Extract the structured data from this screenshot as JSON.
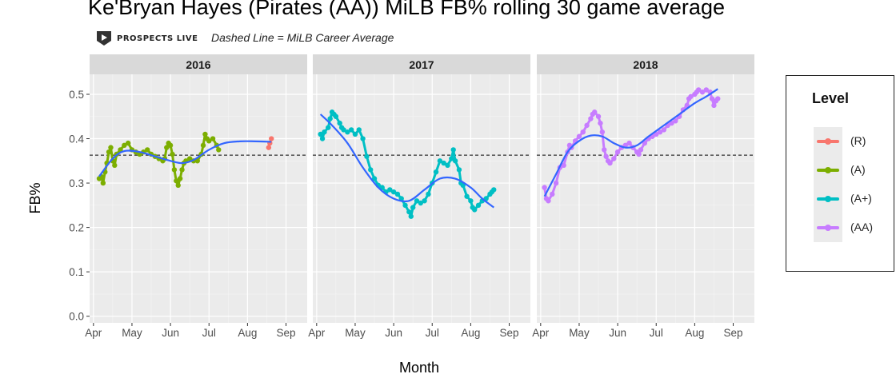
{
  "page": {
    "title": "Ke'Bryan Hayes (Pirates (AA)) MiLB FB% rolling 30 game average",
    "logo_text": "PROSPECTS LIVE",
    "subtitle": "Dashed Line = MiLB Career Average"
  },
  "legend": {
    "title": "Level",
    "items": [
      {
        "label": "(R)",
        "color": "#f8766d"
      },
      {
        "label": "(A)",
        "color": "#7cae00"
      },
      {
        "label": "(A+)",
        "color": "#00bfc4"
      },
      {
        "label": "(AA)",
        "color": "#c77cff"
      }
    ]
  },
  "chart_data": {
    "type": "line",
    "xlabel": "Month",
    "ylabel": "FB%",
    "ylim": [
      -0.015,
      0.545
    ],
    "yticks": [
      0.0,
      0.1,
      0.2,
      0.3,
      0.4,
      0.5
    ],
    "ytick_labels": [
      "0.0",
      "0.1",
      "0.2",
      "0.3",
      "0.4",
      "0.5"
    ],
    "xlim_months": [
      3.9,
      9.55
    ],
    "xticks": [
      4,
      5,
      6,
      7,
      8,
      9
    ],
    "xtick_labels": [
      "Apr",
      "May",
      "Jun",
      "Jul",
      "Aug",
      "Sep"
    ],
    "career_average": 0.363,
    "grid": true,
    "legend_position": "right",
    "smooth_color": "#3366ff",
    "reference_line_style": "dashed black",
    "panels": [
      {
        "facet": "2016",
        "series": [
          {
            "name": "(A)",
            "color": "#7cae00",
            "points": [
              [
                4.15,
                0.31
              ],
              [
                4.2,
                0.315
              ],
              [
                4.25,
                0.3
              ],
              [
                4.3,
                0.325
              ],
              [
                4.35,
                0.345
              ],
              [
                4.4,
                0.37
              ],
              [
                4.45,
                0.38
              ],
              [
                4.5,
                0.35
              ],
              [
                4.55,
                0.34
              ],
              [
                4.6,
                0.365
              ],
              [
                4.7,
                0.375
              ],
              [
                4.8,
                0.385
              ],
              [
                4.9,
                0.39
              ],
              [
                5.0,
                0.375
              ],
              [
                5.1,
                0.37
              ],
              [
                5.2,
                0.365
              ],
              [
                5.3,
                0.37
              ],
              [
                5.4,
                0.375
              ],
              [
                5.5,
                0.365
              ],
              [
                5.6,
                0.36
              ],
              [
                5.7,
                0.355
              ],
              [
                5.8,
                0.35
              ],
              [
                5.85,
                0.355
              ],
              [
                5.9,
                0.38
              ],
              [
                5.95,
                0.39
              ],
              [
                6.0,
                0.385
              ],
              [
                6.05,
                0.365
              ],
              [
                6.1,
                0.33
              ],
              [
                6.15,
                0.305
              ],
              [
                6.2,
                0.295
              ],
              [
                6.25,
                0.31
              ],
              [
                6.3,
                0.33
              ],
              [
                6.35,
                0.345
              ],
              [
                6.4,
                0.35
              ],
              [
                6.5,
                0.355
              ],
              [
                6.6,
                0.35
              ],
              [
                6.7,
                0.35
              ],
              [
                6.8,
                0.365
              ],
              [
                6.85,
                0.385
              ],
              [
                6.9,
                0.41
              ],
              [
                6.95,
                0.4
              ],
              [
                7.0,
                0.395
              ],
              [
                7.1,
                0.4
              ],
              [
                7.2,
                0.385
              ],
              [
                7.25,
                0.375
              ]
            ]
          },
          {
            "name": "(R)",
            "color": "#f8766d",
            "points": [
              [
                8.55,
                0.38
              ],
              [
                8.58,
                0.39
              ],
              [
                8.62,
                0.4
              ]
            ]
          }
        ],
        "smooth": [
          [
            4.15,
            0.315
          ],
          [
            4.5,
            0.355
          ],
          [
            4.8,
            0.372
          ],
          [
            5.2,
            0.37
          ],
          [
            5.6,
            0.36
          ],
          [
            6.0,
            0.35
          ],
          [
            6.3,
            0.345
          ],
          [
            6.6,
            0.352
          ],
          [
            7.0,
            0.375
          ],
          [
            7.4,
            0.39
          ],
          [
            7.8,
            0.394
          ],
          [
            8.2,
            0.394
          ],
          [
            8.62,
            0.393
          ]
        ]
      },
      {
        "facet": "2017",
        "series": [
          {
            "name": "(A+)",
            "color": "#00bfc4",
            "points": [
              [
                4.1,
                0.41
              ],
              [
                4.15,
                0.4
              ],
              [
                4.2,
                0.415
              ],
              [
                4.3,
                0.425
              ],
              [
                4.35,
                0.445
              ],
              [
                4.4,
                0.46
              ],
              [
                4.45,
                0.455
              ],
              [
                4.5,
                0.45
              ],
              [
                4.6,
                0.435
              ],
              [
                4.65,
                0.425
              ],
              [
                4.7,
                0.42
              ],
              [
                4.8,
                0.415
              ],
              [
                4.9,
                0.42
              ],
              [
                5.0,
                0.41
              ],
              [
                5.1,
                0.42
              ],
              [
                5.2,
                0.4
              ],
              [
                5.3,
                0.36
              ],
              [
                5.4,
                0.33
              ],
              [
                5.5,
                0.31
              ],
              [
                5.6,
                0.295
              ],
              [
                5.7,
                0.29
              ],
              [
                5.8,
                0.28
              ],
              [
                5.9,
                0.285
              ],
              [
                6.0,
                0.28
              ],
              [
                6.1,
                0.275
              ],
              [
                6.2,
                0.265
              ],
              [
                6.3,
                0.25
              ],
              [
                6.4,
                0.235
              ],
              [
                6.45,
                0.225
              ],
              [
                6.5,
                0.245
              ],
              [
                6.6,
                0.26
              ],
              [
                6.7,
                0.255
              ],
              [
                6.8,
                0.26
              ],
              [
                6.9,
                0.275
              ],
              [
                7.0,
                0.3
              ],
              [
                7.1,
                0.325
              ],
              [
                7.2,
                0.35
              ],
              [
                7.3,
                0.345
              ],
              [
                7.4,
                0.34
              ],
              [
                7.5,
                0.355
              ],
              [
                7.55,
                0.375
              ],
              [
                7.6,
                0.35
              ],
              [
                7.7,
                0.33
              ],
              [
                7.75,
                0.3
              ],
              [
                7.8,
                0.295
              ],
              [
                7.9,
                0.27
              ],
              [
                8.0,
                0.26
              ],
              [
                8.05,
                0.245
              ],
              [
                8.1,
                0.24
              ],
              [
                8.2,
                0.25
              ],
              [
                8.3,
                0.26
              ],
              [
                8.4,
                0.265
              ],
              [
                8.5,
                0.275
              ],
              [
                8.55,
                0.28
              ],
              [
                8.6,
                0.285
              ]
            ]
          }
        ],
        "smooth": [
          [
            4.1,
            0.455
          ],
          [
            4.4,
            0.43
          ],
          [
            4.8,
            0.39
          ],
          [
            5.2,
            0.335
          ],
          [
            5.6,
            0.29
          ],
          [
            6.0,
            0.265
          ],
          [
            6.4,
            0.26
          ],
          [
            6.8,
            0.285
          ],
          [
            7.2,
            0.31
          ],
          [
            7.6,
            0.31
          ],
          [
            8.0,
            0.29
          ],
          [
            8.3,
            0.265
          ],
          [
            8.6,
            0.245
          ]
        ]
      },
      {
        "facet": "2018",
        "series": [
          {
            "name": "(AA)",
            "color": "#c77cff",
            "points": [
              [
                4.1,
                0.29
              ],
              [
                4.15,
                0.265
              ],
              [
                4.2,
                0.26
              ],
              [
                4.3,
                0.275
              ],
              [
                4.4,
                0.3
              ],
              [
                4.5,
                0.335
              ],
              [
                4.6,
                0.34
              ],
              [
                4.7,
                0.37
              ],
              [
                4.75,
                0.385
              ],
              [
                4.8,
                0.38
              ],
              [
                4.9,
                0.395
              ],
              [
                5.0,
                0.405
              ],
              [
                5.1,
                0.415
              ],
              [
                5.2,
                0.43
              ],
              [
                5.3,
                0.445
              ],
              [
                5.35,
                0.455
              ],
              [
                5.4,
                0.46
              ],
              [
                5.5,
                0.45
              ],
              [
                5.55,
                0.435
              ],
              [
                5.6,
                0.415
              ],
              [
                5.65,
                0.375
              ],
              [
                5.7,
                0.36
              ],
              [
                5.75,
                0.35
              ],
              [
                5.8,
                0.345
              ],
              [
                5.9,
                0.355
              ],
              [
                6.0,
                0.37
              ],
              [
                6.1,
                0.38
              ],
              [
                6.2,
                0.385
              ],
              [
                6.3,
                0.39
              ],
              [
                6.4,
                0.38
              ],
              [
                6.5,
                0.37
              ],
              [
                6.55,
                0.365
              ],
              [
                6.6,
                0.375
              ],
              [
                6.7,
                0.39
              ],
              [
                6.8,
                0.4
              ],
              [
                6.9,
                0.405
              ],
              [
                7.0,
                0.41
              ],
              [
                7.1,
                0.415
              ],
              [
                7.2,
                0.42
              ],
              [
                7.3,
                0.43
              ],
              [
                7.4,
                0.435
              ],
              [
                7.5,
                0.44
              ],
              [
                7.6,
                0.45
              ],
              [
                7.7,
                0.465
              ],
              [
                7.8,
                0.475
              ],
              [
                7.85,
                0.49
              ],
              [
                7.9,
                0.495
              ],
              [
                8.0,
                0.5
              ],
              [
                8.05,
                0.505
              ],
              [
                8.1,
                0.51
              ],
              [
                8.2,
                0.505
              ],
              [
                8.3,
                0.51
              ],
              [
                8.4,
                0.505
              ],
              [
                8.45,
                0.49
              ],
              [
                8.5,
                0.475
              ],
              [
                8.55,
                0.485
              ],
              [
                8.6,
                0.49
              ]
            ]
          }
        ],
        "smooth": [
          [
            4.1,
            0.27
          ],
          [
            4.4,
            0.32
          ],
          [
            4.7,
            0.37
          ],
          [
            5.0,
            0.395
          ],
          [
            5.3,
            0.407
          ],
          [
            5.6,
            0.405
          ],
          [
            5.9,
            0.39
          ],
          [
            6.2,
            0.38
          ],
          [
            6.5,
            0.385
          ],
          [
            6.8,
            0.405
          ],
          [
            7.2,
            0.43
          ],
          [
            7.6,
            0.455
          ],
          [
            8.0,
            0.48
          ],
          [
            8.3,
            0.495
          ],
          [
            8.6,
            0.512
          ]
        ]
      }
    ]
  }
}
